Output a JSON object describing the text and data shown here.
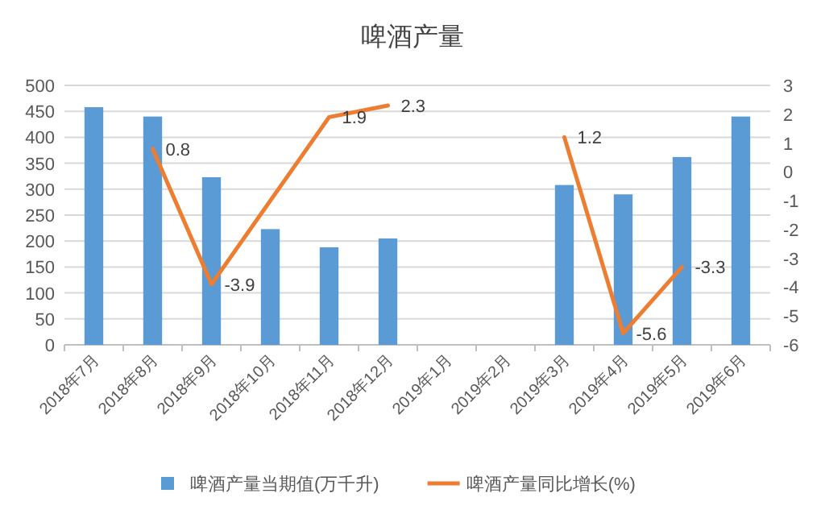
{
  "chart_data": {
    "type": "bar",
    "title": "啤酒产量",
    "categories": [
      "2018年7月",
      "2018年8月",
      "2018年9月",
      "2018年10月",
      "2018年11月",
      "2018年12月",
      "2019年1月",
      "2019年2月",
      "2019年3月",
      "2019年4月",
      "2019年5月",
      "2019年6月"
    ],
    "series": [
      {
        "name": "啤酒产量当期值(万千升)",
        "color": "#5b9bd5",
        "values": [
          458,
          440,
          323,
          223,
          188,
          205,
          null,
          null,
          308,
          290,
          362,
          440
        ]
      },
      {
        "name": "啤酒产量同比增长(%)",
        "type": "line",
        "axis": "y2",
        "color": "#ed7d31",
        "values": [
          null,
          0.8,
          -3.9,
          -1.0,
          1.9,
          2.3,
          null,
          null,
          1.2,
          -5.6,
          -3.3,
          null
        ],
        "value_labels": [
          null,
          "0.8",
          "-3.9",
          null,
          "1.9",
          "2.3",
          null,
          null,
          "1.2",
          "-5.6",
          "-3.3",
          null
        ]
      }
    ],
    "ylim": [
      0,
      500
    ],
    "yticks": [
      0,
      50,
      100,
      150,
      200,
      250,
      300,
      350,
      400,
      450,
      500
    ],
    "y2lim": [
      -6,
      3
    ],
    "y2ticks": [
      -6,
      -5,
      -4,
      -3,
      -2,
      -1,
      0,
      1,
      2,
      3
    ],
    "grid": "y",
    "legend": "bottom"
  }
}
